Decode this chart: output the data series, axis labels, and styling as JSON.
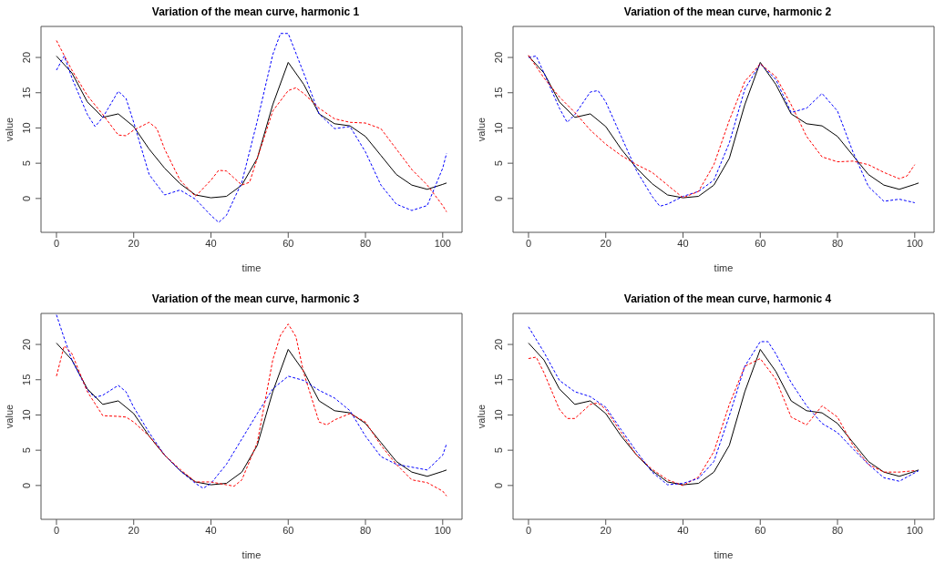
{
  "chart_data": [
    {
      "type": "line",
      "title": "Variation of the mean curve, harmonic 1",
      "xlabel": "time",
      "ylabel": "value",
      "xlim": [
        -4,
        105
      ],
      "ylim": [
        -4.8,
        24.4
      ],
      "xticks": [
        0,
        20,
        40,
        60,
        80,
        100
      ],
      "yticks": [
        0,
        5,
        10,
        15,
        20
      ],
      "marker": "none",
      "series": [
        {
          "color": "#000000",
          "line_style": "solid",
          "x": [
            0,
            4,
            8,
            12,
            16,
            20,
            24,
            28,
            32,
            36,
            40,
            44,
            48,
            52,
            56,
            60,
            64,
            68,
            72,
            76,
            80,
            84,
            88,
            92,
            96,
            100,
            101
          ],
          "values": [
            20.2,
            17.8,
            13.7,
            11.5,
            12.0,
            10.2,
            7.0,
            4.3,
            2.1,
            0.5,
            0.1,
            0.3,
            1.9,
            5.7,
            13.3,
            19.3,
            16.2,
            12.0,
            10.6,
            10.3,
            8.8,
            6.1,
            3.4,
            1.9,
            1.3,
            2.0,
            2.2
          ]
        },
        {
          "color": "#0000ff",
          "line_style": "dashed",
          "x": [
            0,
            2,
            4,
            8,
            10,
            12,
            16,
            18,
            20,
            24,
            28,
            32,
            36,
            40,
            42,
            44,
            48,
            52,
            56,
            58,
            60,
            64,
            68,
            72,
            76,
            80,
            84,
            88,
            92,
            96,
            100,
            101
          ],
          "values": [
            18.2,
            20.2,
            17.1,
            11.9,
            10.2,
            11.5,
            15.2,
            14.2,
            10.8,
            3.4,
            0.5,
            1.2,
            -0.1,
            -2.4,
            -3.4,
            -2.4,
            2.3,
            11.0,
            20.4,
            23.4,
            23.4,
            17.8,
            12.0,
            9.9,
            10.2,
            6.6,
            1.9,
            -0.8,
            -1.7,
            -1.0,
            4.3,
            6.4
          ]
        },
        {
          "color": "#ff0000",
          "line_style": "dashed",
          "x": [
            0,
            4,
            8,
            12,
            16,
            18,
            20,
            24,
            26,
            28,
            32,
            36,
            40,
            42,
            44,
            48,
            50,
            52,
            56,
            60,
            62,
            64,
            68,
            72,
            76,
            80,
            84,
            88,
            92,
            96,
            100,
            101
          ],
          "values": [
            22.4,
            18.2,
            14.6,
            11.9,
            9.0,
            8.9,
            9.7,
            10.8,
            9.9,
            7.0,
            2.6,
            0.3,
            2.6,
            4.0,
            3.9,
            1.9,
            2.3,
            5.7,
            12.4,
            15.3,
            15.7,
            14.9,
            12.8,
            11.3,
            10.8,
            10.7,
            9.9,
            7.0,
            4.1,
            1.9,
            -1.0,
            -1.9
          ]
        }
      ]
    },
    {
      "type": "line",
      "title": "Variation of the mean curve, harmonic 2",
      "xlabel": "time",
      "ylabel": "value",
      "xlim": [
        -4,
        105
      ],
      "ylim": [
        -4.8,
        24.4
      ],
      "xticks": [
        0,
        20,
        40,
        60,
        80,
        100
      ],
      "yticks": [
        0,
        5,
        10,
        15,
        20
      ],
      "marker": "none",
      "series": [
        {
          "color": "#000000",
          "line_style": "solid",
          "x": [
            0,
            4,
            8,
            12,
            16,
            20,
            24,
            28,
            32,
            36,
            40,
            44,
            48,
            52,
            56,
            60,
            64,
            68,
            72,
            76,
            80,
            84,
            88,
            92,
            96,
            100,
            101
          ],
          "values": [
            20.2,
            17.8,
            13.7,
            11.5,
            12.0,
            10.2,
            7.0,
            4.3,
            2.1,
            0.5,
            0.1,
            0.3,
            1.9,
            5.7,
            13.3,
            19.3,
            16.2,
            12.0,
            10.6,
            10.3,
            8.8,
            6.1,
            3.4,
            1.9,
            1.3,
            2.0,
            2.2
          ]
        },
        {
          "color": "#0000ff",
          "line_style": "dashed",
          "x": [
            0,
            2,
            4,
            8,
            10,
            12,
            16,
            18,
            20,
            24,
            28,
            32,
            34,
            36,
            40,
            44,
            48,
            52,
            56,
            60,
            64,
            68,
            72,
            76,
            80,
            84,
            88,
            92,
            96,
            100
          ],
          "values": [
            20.0,
            20.2,
            17.8,
            12.8,
            10.8,
            11.9,
            15.1,
            15.3,
            13.7,
            8.8,
            3.9,
            0.3,
            -1.1,
            -0.8,
            0.3,
            1.0,
            2.6,
            7.9,
            15.5,
            19.1,
            16.9,
            12.2,
            12.8,
            14.9,
            12.4,
            6.6,
            1.7,
            -0.4,
            -0.1,
            -0.6
          ]
        },
        {
          "color": "#ff0000",
          "line_style": "dashed",
          "x": [
            0,
            4,
            8,
            12,
            16,
            20,
            24,
            28,
            32,
            36,
            40,
            44,
            48,
            52,
            56,
            60,
            64,
            68,
            72,
            76,
            80,
            84,
            88,
            92,
            96,
            98,
            100
          ],
          "values": [
            20.3,
            17.1,
            14.4,
            12.2,
            9.7,
            7.7,
            6.1,
            4.8,
            3.7,
            1.9,
            0.1,
            1.0,
            4.8,
            11.1,
            16.6,
            19.1,
            17.3,
            13.3,
            8.8,
            5.9,
            5.2,
            5.3,
            4.8,
            3.7,
            2.8,
            3.2,
            4.8
          ]
        }
      ]
    },
    {
      "type": "line",
      "title": "Variation of the mean curve, harmonic 3",
      "xlabel": "time",
      "ylabel": "value",
      "xlim": [
        -4,
        105
      ],
      "ylim": [
        -4.8,
        24.4
      ],
      "xticks": [
        0,
        20,
        40,
        60,
        80,
        100
      ],
      "yticks": [
        0,
        5,
        10,
        15,
        20
      ],
      "marker": "none",
      "series": [
        {
          "color": "#000000",
          "line_style": "solid",
          "x": [
            0,
            4,
            8,
            12,
            16,
            20,
            24,
            28,
            32,
            36,
            40,
            44,
            48,
            52,
            56,
            60,
            64,
            68,
            72,
            76,
            80,
            84,
            88,
            92,
            96,
            100,
            101
          ],
          "values": [
            20.2,
            17.8,
            13.7,
            11.5,
            12.0,
            10.2,
            7.0,
            4.3,
            2.1,
            0.5,
            0.1,
            0.3,
            1.9,
            5.7,
            13.3,
            19.3,
            16.2,
            12.0,
            10.6,
            10.3,
            8.8,
            6.1,
            3.4,
            1.9,
            1.3,
            2.0,
            2.2
          ]
        },
        {
          "color": "#0000ff",
          "line_style": "dashed",
          "x": [
            0,
            2,
            4,
            8,
            10,
            12,
            16,
            18,
            20,
            24,
            28,
            32,
            36,
            38,
            40,
            44,
            48,
            52,
            56,
            60,
            64,
            68,
            72,
            76,
            80,
            84,
            88,
            92,
            96,
            100,
            101
          ],
          "values": [
            24.2,
            20.9,
            17.8,
            13.5,
            12.5,
            12.8,
            14.2,
            13.3,
            11.1,
            7.5,
            4.3,
            2.1,
            0.3,
            -0.4,
            0.3,
            3.0,
            6.6,
            10.2,
            13.7,
            15.5,
            14.9,
            13.5,
            12.4,
            10.6,
            7.0,
            4.1,
            3.0,
            2.6,
            2.2,
            4.3,
            5.9
          ]
        },
        {
          "color": "#ff0000",
          "line_style": "dashed",
          "x": [
            0,
            2,
            4,
            8,
            12,
            16,
            18,
            20,
            24,
            28,
            32,
            36,
            40,
            44,
            46,
            48,
            52,
            56,
            58,
            60,
            62,
            64,
            68,
            70,
            72,
            76,
            80,
            84,
            88,
            92,
            96,
            100,
            101
          ],
          "values": [
            15.5,
            19.8,
            18.7,
            13.3,
            9.9,
            9.8,
            9.7,
            9.0,
            7.0,
            4.3,
            2.3,
            0.5,
            0.5,
            0.1,
            -0.1,
            0.8,
            6.1,
            17.8,
            21.3,
            22.9,
            21.1,
            16.0,
            9.0,
            8.6,
            9.3,
            10.2,
            9.0,
            5.7,
            3.0,
            0.8,
            0.4,
            -0.8,
            -1.5
          ]
        }
      ]
    },
    {
      "type": "line",
      "title": "Variation of the mean curve, harmonic 4",
      "xlabel": "time",
      "ylabel": "value",
      "xlim": [
        -4,
        105
      ],
      "ylim": [
        -4.8,
        24.4
      ],
      "xticks": [
        0,
        20,
        40,
        60,
        80,
        100
      ],
      "yticks": [
        0,
        5,
        10,
        15,
        20
      ],
      "marker": "none",
      "series": [
        {
          "color": "#000000",
          "line_style": "solid",
          "x": [
            0,
            4,
            8,
            12,
            16,
            20,
            24,
            28,
            32,
            36,
            40,
            44,
            48,
            52,
            56,
            60,
            64,
            68,
            72,
            76,
            80,
            84,
            88,
            92,
            96,
            100,
            101
          ],
          "values": [
            20.2,
            17.8,
            13.7,
            11.5,
            12.0,
            10.2,
            7.0,
            4.3,
            2.1,
            0.5,
            0.1,
            0.3,
            1.9,
            5.7,
            13.3,
            19.3,
            16.2,
            12.0,
            10.6,
            10.3,
            8.8,
            6.1,
            3.4,
            1.9,
            1.3,
            2.0,
            2.2
          ]
        },
        {
          "color": "#ff0000",
          "line_style": "dashed",
          "x": [
            0,
            2,
            4,
            8,
            10,
            12,
            16,
            18,
            20,
            24,
            28,
            32,
            36,
            40,
            44,
            48,
            52,
            56,
            60,
            64,
            68,
            72,
            76,
            80,
            84,
            88,
            92,
            96,
            100
          ],
          "values": [
            18.0,
            18.2,
            16.0,
            10.8,
            9.5,
            9.5,
            11.5,
            11.7,
            10.8,
            7.5,
            4.3,
            2.3,
            0.8,
            0.0,
            1.2,
            4.8,
            11.5,
            16.9,
            18.0,
            15.1,
            9.7,
            8.6,
            11.3,
            9.7,
            5.7,
            3.0,
            1.9,
            1.9,
            2.1
          ]
        },
        {
          "color": "#0000ff",
          "line_style": "dashed",
          "x": [
            0,
            4,
            8,
            12,
            16,
            20,
            24,
            28,
            32,
            36,
            40,
            44,
            48,
            52,
            56,
            60,
            62,
            64,
            68,
            72,
            76,
            80,
            84,
            88,
            92,
            96,
            101
          ],
          "values": [
            22.5,
            18.9,
            14.9,
            13.3,
            12.6,
            11.1,
            7.9,
            4.8,
            1.9,
            0.1,
            0.3,
            1.0,
            3.4,
            9.9,
            16.9,
            20.4,
            20.4,
            18.7,
            14.6,
            11.3,
            8.8,
            7.5,
            5.2,
            3.0,
            1.1,
            0.6,
            2.1
          ]
        }
      ]
    }
  ]
}
